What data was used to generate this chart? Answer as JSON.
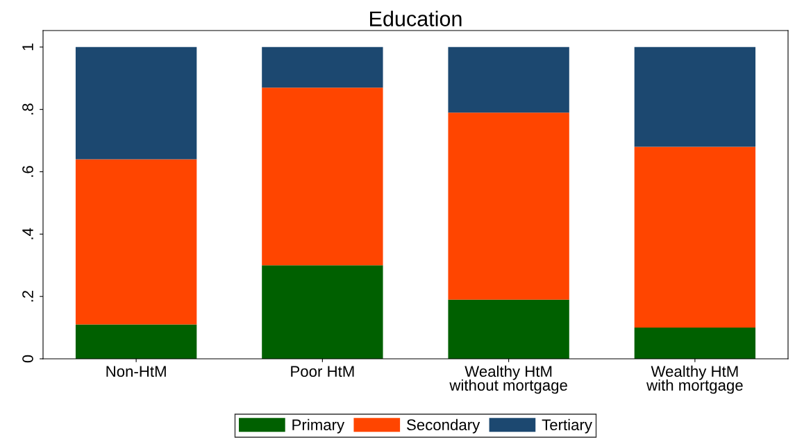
{
  "chart_data": {
    "type": "bar",
    "title": "Education",
    "stacked": true,
    "categories": [
      "Non-HtM",
      "Poor HtM",
      "Wealthy HtM\nwithout mortgage",
      "Wealthy HtM\nwith mortgage"
    ],
    "series": [
      {
        "name": "Primary",
        "color": "#006000",
        "values": [
          0.11,
          0.3,
          0.19,
          0.1
        ]
      },
      {
        "name": "Secondary",
        "color": "#ff4500",
        "values": [
          0.53,
          0.57,
          0.6,
          0.58
        ]
      },
      {
        "name": "Tertiary",
        "color": "#1c4870",
        "values": [
          0.36,
          0.13,
          0.21,
          0.32
        ]
      }
    ],
    "ylim": [
      0,
      1.053
    ],
    "yticks": [
      {
        "value": 0,
        "label": "0"
      },
      {
        "value": 0.2,
        "label": ".2"
      },
      {
        "value": 0.4,
        "label": ".4"
      },
      {
        "value": 0.6,
        "label": ".6"
      },
      {
        "value": 0.8,
        "label": ".8"
      },
      {
        "value": 1,
        "label": "1"
      }
    ],
    "grid": false,
    "legend": "bottom"
  }
}
